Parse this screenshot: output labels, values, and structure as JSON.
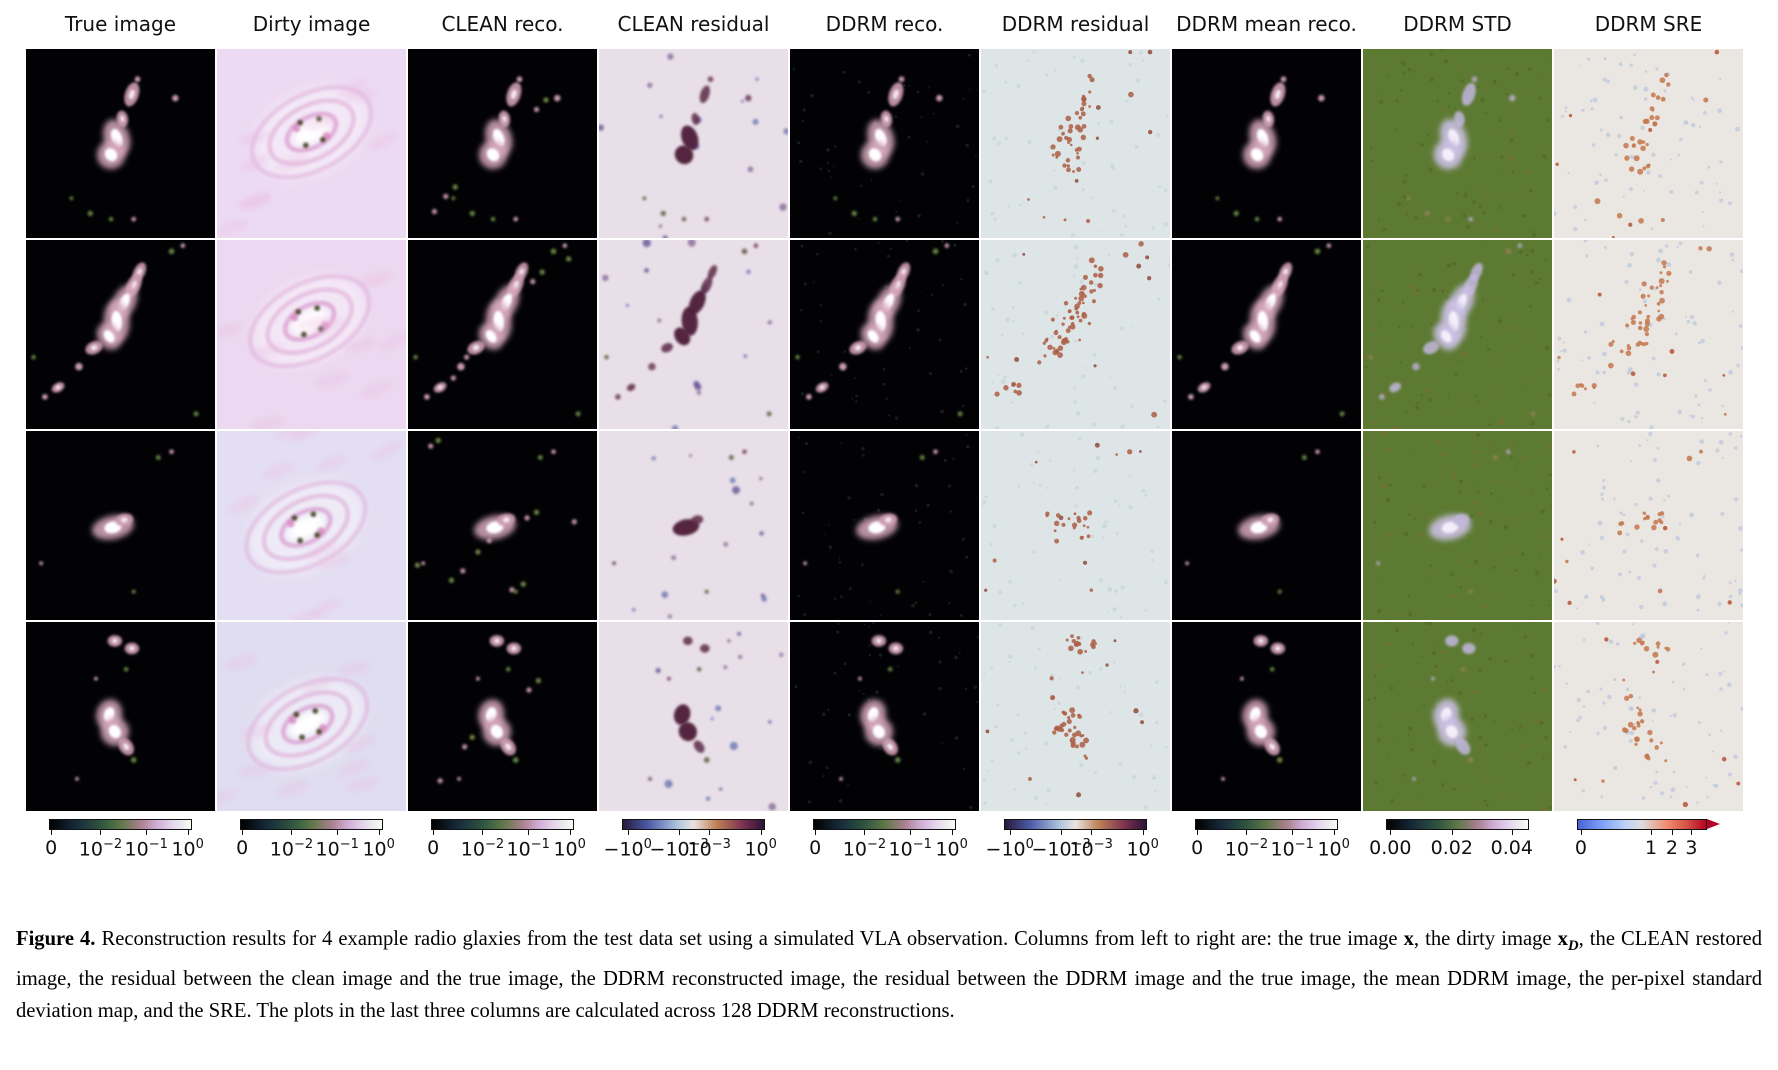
{
  "figure_label": "Figure 4.",
  "columns": [
    {
      "label": "True image"
    },
    {
      "label": "Dirty image"
    },
    {
      "label": "CLEAN reco."
    },
    {
      "label": "CLEAN residual"
    },
    {
      "label": "DDRM reco."
    },
    {
      "label": "DDRM residual"
    },
    {
      "label": "DDRM mean reco."
    },
    {
      "label": "DDRM STD"
    },
    {
      "label": "DDRM SRE"
    }
  ],
  "grid": {
    "n_rows": 4,
    "n_cols": 9
  },
  "colormaps": {
    "cubehelix": [
      "#000000",
      "#16293a",
      "#2f5440",
      "#5d7747",
      "#a97f8d",
      "#d0aed6",
      "#e3d3ea",
      "#f7fcf5"
    ],
    "twilight_shifted": [
      "#271a3d",
      "#4d5aa8",
      "#a9c2dc",
      "#e9e3e1",
      "#c08356",
      "#7c3150",
      "#2a1436"
    ],
    "coolwarm": [
      "#4a63d3",
      "#7b9ff9",
      "#c0d4f5",
      "#dddcdb",
      "#f08a6c",
      "#d65244",
      "#b40426"
    ]
  },
  "colorbars": [
    {
      "column": "True image",
      "cmap": "cubehelix",
      "ticks": [
        {
          "base": "0",
          "pos": 1.5
        },
        {
          "base": "10",
          "exp": "−2",
          "pos": 36
        },
        {
          "base": "10",
          "exp": "−1",
          "pos": 68
        },
        {
          "base": "10",
          "exp": "0",
          "pos": 97
        }
      ]
    },
    {
      "column": "Dirty image",
      "cmap": "cubehelix",
      "ticks": [
        {
          "base": "0",
          "pos": 1.5
        },
        {
          "base": "10",
          "exp": "−2",
          "pos": 36
        },
        {
          "base": "10",
          "exp": "−1",
          "pos": 68
        },
        {
          "base": "10",
          "exp": "0",
          "pos": 97
        }
      ]
    },
    {
      "column": "CLEAN reco.",
      "cmap": "cubehelix",
      "ticks": [
        {
          "base": "0",
          "pos": 1.5
        },
        {
          "base": "10",
          "exp": "−2",
          "pos": 36
        },
        {
          "base": "10",
          "exp": "−1",
          "pos": 68
        },
        {
          "base": "10",
          "exp": "0",
          "pos": 97
        }
      ]
    },
    {
      "column": "CLEAN residual",
      "cmap": "twilight_shifted",
      "ticks": [
        {
          "base": "−10",
          "exp": "0",
          "pos": 4
        },
        {
          "base": "−10",
          "exp": "−3",
          "pos": 40
        },
        {
          "base": "10",
          "exp": "−3",
          "pos": 61
        },
        {
          "base": "10",
          "exp": "0",
          "pos": 97
        }
      ]
    },
    {
      "column": "DDRM reco.",
      "cmap": "cubehelix",
      "ticks": [
        {
          "base": "0",
          "pos": 1.5
        },
        {
          "base": "10",
          "exp": "−2",
          "pos": 36
        },
        {
          "base": "10",
          "exp": "−1",
          "pos": 68
        },
        {
          "base": "10",
          "exp": "0",
          "pos": 97
        }
      ]
    },
    {
      "column": "DDRM residual",
      "cmap": "twilight_shifted",
      "ticks": [
        {
          "base": "−10",
          "exp": "0",
          "pos": 4
        },
        {
          "base": "−10",
          "exp": "−3",
          "pos": 40
        },
        {
          "base": "10",
          "exp": "−3",
          "pos": 61
        },
        {
          "base": "10",
          "exp": "0",
          "pos": 97
        }
      ]
    },
    {
      "column": "DDRM mean reco.",
      "cmap": "cubehelix",
      "ticks": [
        {
          "base": "0",
          "pos": 1.5
        },
        {
          "base": "10",
          "exp": "−2",
          "pos": 36
        },
        {
          "base": "10",
          "exp": "−1",
          "pos": 68
        },
        {
          "base": "10",
          "exp": "0",
          "pos": 97
        }
      ]
    },
    {
      "column": "DDRM STD",
      "cmap": "cubehelix",
      "ticks": [
        {
          "base": "0.00",
          "pos": 3
        },
        {
          "base": "0.02",
          "pos": 46
        },
        {
          "base": "0.04",
          "pos": 88
        }
      ]
    },
    {
      "column": "DDRM SRE",
      "cmap": "coolwarm",
      "extend": "max",
      "ticks": [
        {
          "base": "0",
          "pos": 3
        },
        {
          "base": "1",
          "pos": 57
        },
        {
          "base": "2",
          "pos": 73
        },
        {
          "base": "3",
          "pos": 88
        }
      ]
    }
  ],
  "caption": {
    "segments": [
      {
        "text": "Figure 4.",
        "style": "bold"
      },
      {
        "text": " Reconstruction results for 4 example radio glaxies from the test data set using a simulated VLA observation. Columns from left to right are: the true image ",
        "style": "normal"
      },
      {
        "text": "x",
        "style": "bold"
      },
      {
        "text": ", the dirty image ",
        "style": "normal"
      },
      {
        "text": "x",
        "style": "bold"
      },
      {
        "text": "D",
        "style": "bold-italic-sub"
      },
      {
        "text": ", the CLEAN restored image, the residual between the clean image and the true image, the DDRM reconstructed image, the residual between the DDRM image and the true image, the mean DDRM image, the per-pixel standard deviation map, and the SRE. The plots in the last three columns are calculated across 128 DDRM reconstructions.",
        "style": "normal"
      }
    ]
  },
  "colors": {
    "page_bg": "#ffffff",
    "dark_panel_bg": "#020204",
    "dirty_bg_rows": [
      "#ecdaf2",
      "#ecd8f0",
      "#e4def2",
      "#e0ddf0"
    ],
    "clean_residual_bg": "#e8dfe8",
    "ddrm_residual_bg": "#dee5e6",
    "std_bg": "#5d7a33",
    "sre_bg": "#eae6e1",
    "galaxy_halo": "#d8a9bd",
    "galaxy_core": "#ffffff",
    "residual_maroon": "#4e1f39",
    "residual_orange": "#ad5e44",
    "sre_orange": "#c4764e",
    "std_blob": "#cbc0e4"
  }
}
